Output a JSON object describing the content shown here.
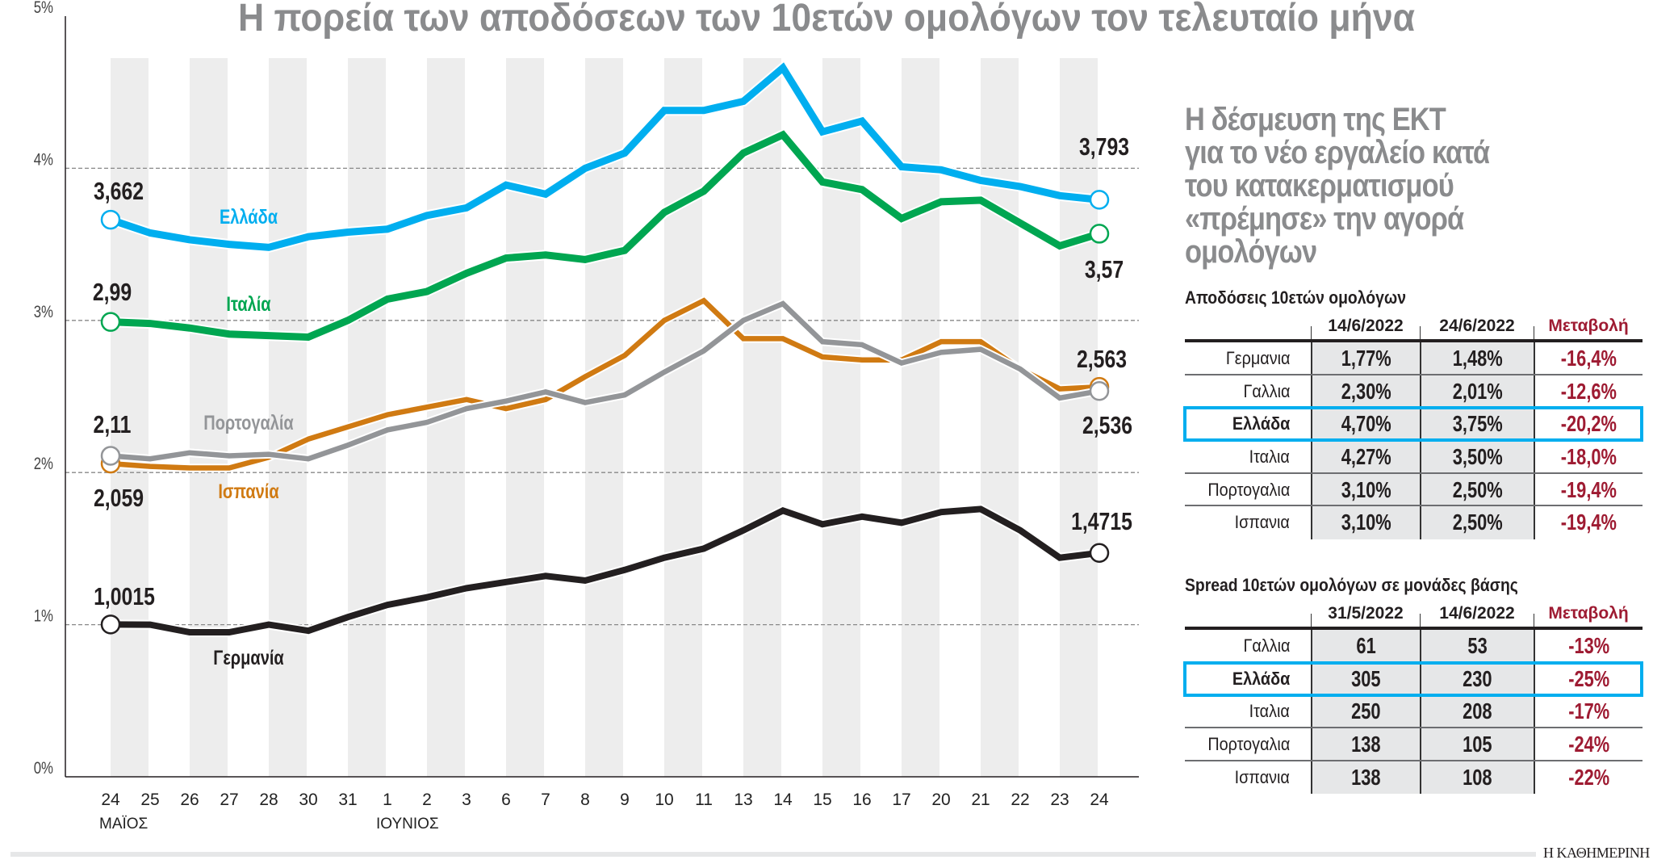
{
  "chart_data": {
    "type": "line",
    "title": "Η πορεία των αποδόσεων των 10ετών ομολόγων τον τελευταίο μήνα",
    "categories": [
      "24",
      "25",
      "26",
      "27",
      "28",
      "30",
      "31",
      "1",
      "2",
      "3",
      "6",
      "7",
      "8",
      "9",
      "10",
      "11",
      "13",
      "14",
      "15",
      "16",
      "17",
      "20",
      "21",
      "22",
      "23",
      "24"
    ],
    "months": [
      {
        "label": "ΜΑΪΟΣ",
        "at_index": 0
      },
      {
        "label": "ΙΟΥΝΙΟΣ",
        "at_index": 7
      }
    ],
    "ylim": [
      0,
      5
    ],
    "yticks": [
      0,
      1,
      2,
      3,
      4,
      5
    ],
    "ytick_labels": [
      "0%",
      "1%",
      "2%",
      "3%",
      "4%",
      "5%"
    ],
    "grid": "horizontal dashed at 1-4%, alternating shaded day columns",
    "legend": "inline labels",
    "series": [
      {
        "name": "Ελλάδα",
        "color": "#00aeef",
        "start_label": "3,662",
        "end_label": "3,793",
        "values": [
          3.662,
          3.575,
          3.53,
          3.5,
          3.48,
          3.55,
          3.58,
          3.6,
          3.69,
          3.74,
          3.89,
          3.83,
          4.0,
          4.1,
          4.38,
          4.38,
          4.44,
          4.66,
          4.24,
          4.31,
          4.01,
          3.99,
          3.92,
          3.88,
          3.82,
          3.793
        ]
      },
      {
        "name": "Ιταλία",
        "color": "#00a651",
        "start_label": "2,99",
        "end_label": "3,57",
        "values": [
          2.99,
          2.98,
          2.95,
          2.91,
          2.9,
          2.89,
          3.0,
          3.14,
          3.19,
          3.31,
          3.41,
          3.43,
          3.4,
          3.46,
          3.71,
          3.85,
          4.1,
          4.22,
          3.91,
          3.86,
          3.67,
          3.78,
          3.79,
          3.64,
          3.49,
          3.57
        ]
      },
      {
        "name": "Ισπανία",
        "color": "#d07a12",
        "start_label": "2,059",
        "end_label": "2,563",
        "values": [
          2.059,
          2.04,
          2.03,
          2.03,
          2.1,
          2.22,
          2.3,
          2.38,
          2.43,
          2.48,
          2.42,
          2.48,
          2.63,
          2.77,
          3.0,
          3.13,
          2.88,
          2.88,
          2.76,
          2.74,
          2.74,
          2.86,
          2.86,
          2.68,
          2.55,
          2.563
        ]
      },
      {
        "name": "Πορτογαλία",
        "color": "#939598",
        "start_label": "2,11",
        "end_label": "2,536",
        "values": [
          2.11,
          2.09,
          2.13,
          2.11,
          2.12,
          2.09,
          2.18,
          2.28,
          2.33,
          2.42,
          2.47,
          2.53,
          2.46,
          2.51,
          2.66,
          2.8,
          3.0,
          3.11,
          2.86,
          2.84,
          2.72,
          2.79,
          2.81,
          2.68,
          2.49,
          2.536
        ]
      },
      {
        "name": "Γερμανία",
        "color": "#231f20",
        "start_label": "1,0015",
        "end_label": "1,4715",
        "values": [
          1.0015,
          1.0,
          0.95,
          0.95,
          1.0,
          0.96,
          1.05,
          1.13,
          1.18,
          1.24,
          1.28,
          1.32,
          1.29,
          1.36,
          1.44,
          1.5,
          1.62,
          1.75,
          1.66,
          1.71,
          1.67,
          1.74,
          1.76,
          1.62,
          1.44,
          1.4715
        ]
      }
    ]
  },
  "side": {
    "headline": [
      "Η δέσμευση της ΕΚΤ",
      "για το νέο εργαλείο κατά",
      "του κατακερματισμού",
      "«πρέμησε» την αγορά",
      "ομολόγων"
    ],
    "change_color": "#9e1b32",
    "highlight_color": "#00aeef",
    "yields_table": {
      "title": "Αποδόσεις 10ετών ομολόγων",
      "headers": [
        "",
        "14/6/2022",
        "24/6/2022",
        "Μεταβολή"
      ],
      "highlight_row": 2,
      "rows": [
        [
          "Γερμανια",
          "1,77%",
          "1,48%",
          "-16,4%"
        ],
        [
          "Γαλλια",
          "2,30%",
          "2,01%",
          "-12,6%"
        ],
        [
          "Ελλάδα",
          "4,70%",
          "3,75%",
          "-20,2%"
        ],
        [
          "Ιταλια",
          "4,27%",
          "3,50%",
          "-18,0%"
        ],
        [
          "Πορτογαλια",
          "3,10%",
          "2,50%",
          "-19,4%"
        ],
        [
          "Ισπανια",
          "3,10%",
          "2,50%",
          "-19,4%"
        ]
      ]
    },
    "spread_table": {
      "title": "Spread 10ετών ομολόγων σε μονάδες βάσης",
      "headers": [
        "",
        "31/5/2022",
        "14/6/2022",
        "Μεταβολή"
      ],
      "highlight_row": 1,
      "rows": [
        [
          "Γαλλια",
          "61",
          "53",
          "-13%"
        ],
        [
          "Ελλάδα",
          "305",
          "230",
          "-25%"
        ],
        [
          "Ιταλια",
          "250",
          "208",
          "-17%"
        ],
        [
          "Πορτογαλια",
          "138",
          "105",
          "-24%"
        ],
        [
          "Ισπανια",
          "138",
          "108",
          "-22%"
        ]
      ]
    }
  },
  "footer": {
    "brand": "Η ΚΑΘΗΜΕΡΙΝΗ"
  }
}
